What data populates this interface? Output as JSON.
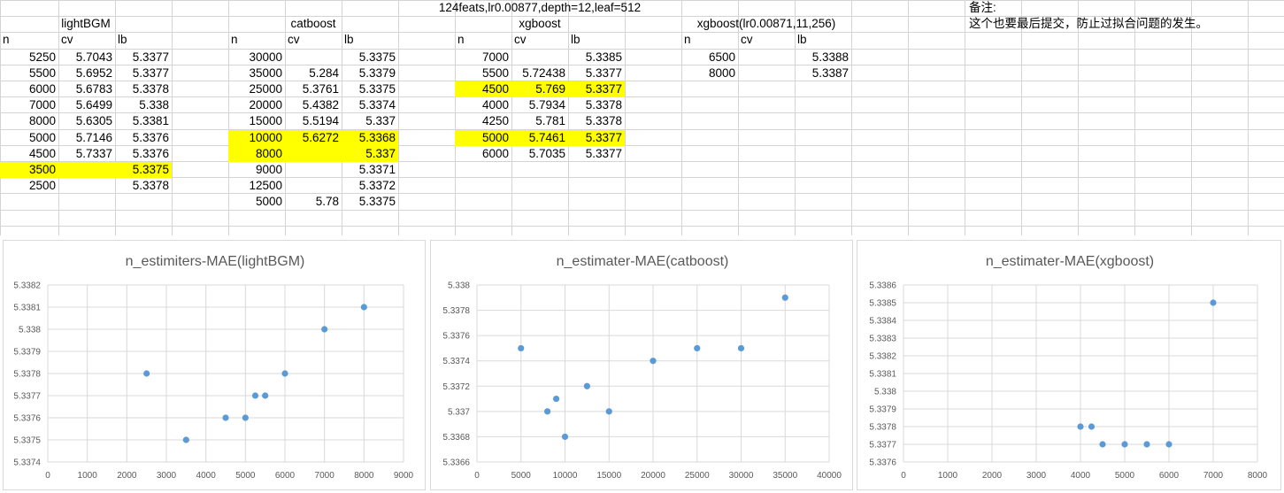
{
  "sheet": {
    "title_row": "124feats,lr0.00877,depth=12,leaf=512",
    "note_title": "备注:",
    "note_text": "这个也要最后提交，防止过拟合问题的发生。",
    "highlight_color": "#ffff00",
    "tables": [
      {
        "name": "lightBGM",
        "headers": [
          "n",
          "cv",
          "lb"
        ],
        "rows": [
          {
            "n": "5250",
            "cv": "5.7043",
            "lb": "5.3377",
            "hl": false
          },
          {
            "n": "5500",
            "cv": "5.6952",
            "lb": "5.3377",
            "hl": false
          },
          {
            "n": "6000",
            "cv": "5.6783",
            "lb": "5.3378",
            "hl": false
          },
          {
            "n": "7000",
            "cv": "5.6499",
            "lb": "5.338",
            "hl": false
          },
          {
            "n": "8000",
            "cv": "5.6305",
            "lb": "5.3381",
            "hl": false
          },
          {
            "n": "5000",
            "cv": "5.7146",
            "lb": "5.3376",
            "hl": false
          },
          {
            "n": "4500",
            "cv": "5.7337",
            "lb": "5.3376",
            "hl": false
          },
          {
            "n": "3500",
            "cv": "",
            "lb": "5.3375",
            "hl": true
          },
          {
            "n": "2500",
            "cv": "",
            "lb": "5.3378",
            "hl": false
          }
        ]
      },
      {
        "name": "catboost",
        "headers": [
          "n",
          "cv",
          "lb"
        ],
        "rows": [
          {
            "n": "30000",
            "cv": "",
            "lb": "5.3375",
            "hl": false
          },
          {
            "n": "35000",
            "cv": "5.284",
            "lb": "5.3379",
            "hl": false
          },
          {
            "n": "25000",
            "cv": "5.3761",
            "lb": "5.3375",
            "hl": false
          },
          {
            "n": "20000",
            "cv": "5.4382",
            "lb": "5.3374",
            "hl": false
          },
          {
            "n": "15000",
            "cv": "5.5194",
            "lb": "5.337",
            "hl": false
          },
          {
            "n": "10000",
            "cv": "5.6272",
            "lb": "5.3368",
            "hl": true
          },
          {
            "n": "8000",
            "cv": "",
            "lb": "5.337",
            "hl": true
          },
          {
            "n": "9000",
            "cv": "",
            "lb": "5.3371",
            "hl": false
          },
          {
            "n": "12500",
            "cv": "",
            "lb": "5.3372",
            "hl": false
          },
          {
            "n": "5000",
            "cv": "5.78",
            "lb": "5.3375",
            "hl": false
          }
        ]
      },
      {
        "name": "xgboost",
        "headers": [
          "n",
          "cv",
          "lb"
        ],
        "rows": [
          {
            "n": "7000",
            "cv": "",
            "lb": "5.3385",
            "hl": false
          },
          {
            "n": "5500",
            "cv": "5.72438",
            "lb": "5.3377",
            "hl": false
          },
          {
            "n": "4500",
            "cv": "5.769",
            "lb": "5.3377",
            "hl": true
          },
          {
            "n": "4000",
            "cv": "5.7934",
            "lb": "5.3378",
            "hl": false
          },
          {
            "n": "4250",
            "cv": "5.781",
            "lb": "5.3378",
            "hl": false
          },
          {
            "n": "5000",
            "cv": "5.7461",
            "lb": "5.3377",
            "hl": true
          },
          {
            "n": "6000",
            "cv": "5.7035",
            "lb": "5.3377",
            "hl": false
          }
        ]
      },
      {
        "name": "xgboost(lr0.00871,11,256)",
        "headers": [
          "n",
          "cv",
          "lb"
        ],
        "rows": [
          {
            "n": "6500",
            "cv": "",
            "lb": "5.3388",
            "hl": false
          },
          {
            "n": "8000",
            "cv": "",
            "lb": "5.3387",
            "hl": false
          }
        ]
      }
    ]
  },
  "chart_data": [
    {
      "type": "scatter",
      "title": "n_estimiters-MAE(lightBGM)",
      "xlabel": "",
      "ylabel": "",
      "xlim": [
        0,
        9000
      ],
      "xstep": 1000,
      "ylim": [
        5.3374,
        5.3382
      ],
      "ystep": 0.0001,
      "xticks": [
        "0",
        "1000",
        "2000",
        "3000",
        "4000",
        "5000",
        "6000",
        "7000",
        "8000",
        "9000"
      ],
      "yticks": [
        "5.3374",
        "5.3375",
        "5.3376",
        "5.3377",
        "5.3378",
        "5.3379",
        "5.338",
        "5.3381",
        "5.3382"
      ],
      "grid": true,
      "point_color": "#5b9bd5",
      "points": [
        [
          5250,
          5.3377
        ],
        [
          5500,
          5.3377
        ],
        [
          6000,
          5.3378
        ],
        [
          7000,
          5.338
        ],
        [
          8000,
          5.3381
        ],
        [
          5000,
          5.3376
        ],
        [
          4500,
          5.3376
        ],
        [
          3500,
          5.3375
        ],
        [
          2500,
          5.3378
        ]
      ]
    },
    {
      "type": "scatter",
      "title": "n_estimater-MAE(catboost)",
      "xlabel": "",
      "ylabel": "",
      "xlim": [
        0,
        40000
      ],
      "xstep": 5000,
      "ylim": [
        5.3366,
        5.338
      ],
      "ystep": 0.0002,
      "xticks": [
        "0",
        "5000",
        "10000",
        "15000",
        "20000",
        "25000",
        "30000",
        "35000",
        "40000"
      ],
      "yticks": [
        "5.3366",
        "5.3368",
        "5.337",
        "5.3372",
        "5.3374",
        "5.3376",
        "5.3378",
        "5.338"
      ],
      "grid": true,
      "point_color": "#5b9bd5",
      "points": [
        [
          30000,
          5.3375
        ],
        [
          35000,
          5.3379
        ],
        [
          25000,
          5.3375
        ],
        [
          20000,
          5.3374
        ],
        [
          15000,
          5.337
        ],
        [
          10000,
          5.3368
        ],
        [
          8000,
          5.337
        ],
        [
          9000,
          5.3371
        ],
        [
          12500,
          5.3372
        ],
        [
          5000,
          5.3375
        ]
      ]
    },
    {
      "type": "scatter",
      "title": "n_estimater-MAE(xgboost)",
      "xlabel": "",
      "ylabel": "",
      "xlim": [
        0,
        8000
      ],
      "xstep": 1000,
      "ylim": [
        5.3376,
        5.3386
      ],
      "ystep": 0.0001,
      "xticks": [
        "0",
        "1000",
        "2000",
        "3000",
        "4000",
        "5000",
        "6000",
        "7000",
        "8000"
      ],
      "yticks": [
        "5.3376",
        "5.3377",
        "5.3378",
        "5.3379",
        "5.338",
        "5.3381",
        "5.3382",
        "5.3383",
        "5.3384",
        "5.3385",
        "5.3386"
      ],
      "grid": true,
      "point_color": "#5b9bd5",
      "points": [
        [
          7000,
          5.3385
        ],
        [
          5500,
          5.3377
        ],
        [
          4500,
          5.3377
        ],
        [
          4000,
          5.3378
        ],
        [
          4250,
          5.3378
        ],
        [
          5000,
          5.3377
        ],
        [
          6000,
          5.3377
        ]
      ]
    }
  ]
}
